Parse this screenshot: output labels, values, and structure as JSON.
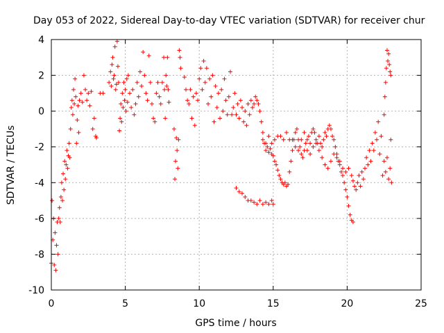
{
  "chart_data": {
    "type": "scatter",
    "title": "Day 053 of 2022, Sidereal Day-to-day VTEC variation (SDTVAR) for receiver chur",
    "xlabel": "GPS time / hours",
    "ylabel": "SDTVAR / TECUs",
    "xlim": [
      0,
      25
    ],
    "ylim": [
      -10,
      4
    ],
    "xticks": [
      0,
      5,
      10,
      15,
      20,
      25
    ],
    "yticks": [
      -10,
      -8,
      -6,
      -4,
      -2,
      0,
      2,
      4
    ],
    "grid": true,
    "marker": "+",
    "color": "#ff0000",
    "series": [
      {
        "name": "SDTVAR",
        "points": [
          [
            0.0,
            -8.5
          ],
          [
            0.05,
            -5.0
          ],
          [
            0.1,
            -7.2
          ],
          [
            0.15,
            -6.0
          ],
          [
            0.2,
            -8.6
          ],
          [
            0.25,
            -6.8
          ],
          [
            0.3,
            -8.9
          ],
          [
            0.35,
            -7.5
          ],
          [
            0.4,
            -6.2
          ],
          [
            0.45,
            -8.0
          ],
          [
            0.5,
            -6.0
          ],
          [
            0.55,
            -5.4
          ],
          [
            0.6,
            -6.2
          ],
          [
            0.65,
            -4.8
          ],
          [
            0.7,
            -4.0
          ],
          [
            0.75,
            -5.0
          ],
          [
            0.8,
            -3.5
          ],
          [
            0.85,
            -4.4
          ],
          [
            0.9,
            -2.8
          ],
          [
            0.95,
            -3.8
          ],
          [
            1.0,
            -3.0
          ],
          [
            1.05,
            -2.2
          ],
          [
            1.1,
            -3.2
          ],
          [
            1.15,
            -2.5
          ],
          [
            1.2,
            -1.8
          ],
          [
            1.25,
            -2.6
          ],
          [
            1.3,
            -1.0
          ],
          [
            1.35,
            0.2
          ],
          [
            1.4,
            0.6
          ],
          [
            1.45,
            -0.2
          ],
          [
            1.5,
            1.2
          ],
          [
            1.55,
            0.4
          ],
          [
            1.6,
            1.8
          ],
          [
            1.65,
            0.8
          ],
          [
            1.7,
            -1.8
          ],
          [
            1.75,
            -0.5
          ],
          [
            1.8,
            0.3
          ],
          [
            1.85,
            -1.2
          ],
          [
            1.9,
            0.6
          ],
          [
            2.0,
            1.0
          ],
          [
            2.1,
            0.5
          ],
          [
            2.2,
            2.0
          ],
          [
            2.3,
            1.2
          ],
          [
            2.4,
            0.6
          ],
          [
            2.5,
            1.0
          ],
          [
            2.6,
            0.3
          ],
          [
            2.7,
            1.1
          ],
          [
            2.8,
            -1.0
          ],
          [
            2.9,
            -0.4
          ],
          [
            3.0,
            -1.4
          ],
          [
            3.05,
            -1.5
          ],
          [
            3.3,
            1.0
          ],
          [
            3.5,
            1.0
          ],
          [
            3.9,
            1.6
          ],
          [
            4.0,
            2.2
          ],
          [
            4.05,
            1.4
          ],
          [
            4.1,
            2.6
          ],
          [
            4.15,
            3.0
          ],
          [
            4.2,
            1.8
          ],
          [
            4.25,
            2.0
          ],
          [
            4.3,
            3.6
          ],
          [
            4.35,
            1.2
          ],
          [
            4.4,
            1.5
          ],
          [
            4.45,
            3.9
          ],
          [
            4.5,
            2.5
          ],
          [
            4.55,
            1.6
          ],
          [
            4.6,
            -1.1
          ],
          [
            4.65,
            -0.4
          ],
          [
            4.7,
            0.4
          ],
          [
            4.75,
            -0.6
          ],
          [
            4.8,
            1.0
          ],
          [
            4.85,
            0.2
          ],
          [
            4.9,
            1.6
          ],
          [
            4.95,
            0.6
          ],
          [
            5.0,
            1.2
          ],
          [
            5.05,
            0.0
          ],
          [
            5.1,
            1.8
          ],
          [
            5.15,
            0.5
          ],
          [
            5.2,
            2.0
          ],
          [
            5.3,
            1.0
          ],
          [
            5.4,
            0.2
          ],
          [
            5.5,
            1.2
          ],
          [
            5.6,
            -0.2
          ],
          [
            5.7,
            0.4
          ],
          [
            5.8,
            1.6
          ],
          [
            5.9,
            0.8
          ],
          [
            6.0,
            2.2
          ],
          [
            6.1,
            1.4
          ],
          [
            6.2,
            3.3
          ],
          [
            6.3,
            2.0
          ],
          [
            6.4,
            1.0
          ],
          [
            6.5,
            0.6
          ],
          [
            6.6,
            3.1
          ],
          [
            6.7,
            1.6
          ],
          [
            6.8,
            0.4
          ],
          [
            6.9,
            -0.4
          ],
          [
            7.0,
            -0.6
          ],
          [
            7.1,
            1.0
          ],
          [
            7.2,
            1.6
          ],
          [
            7.3,
            0.8
          ],
          [
            7.4,
            0.4
          ],
          [
            7.5,
            1.6
          ],
          [
            7.6,
            3.0
          ],
          [
            7.65,
            1.2
          ],
          [
            7.7,
            -0.4
          ],
          [
            7.75,
            2.0
          ],
          [
            7.8,
            1.4
          ],
          [
            7.85,
            3.0
          ],
          [
            7.9,
            1.2
          ],
          [
            7.95,
            0.5
          ],
          [
            8.3,
            -1.0
          ],
          [
            8.35,
            -3.8
          ],
          [
            8.4,
            -2.8
          ],
          [
            8.45,
            -1.5
          ],
          [
            8.5,
            -2.2
          ],
          [
            8.55,
            -3.2
          ],
          [
            8.6,
            -1.6
          ],
          [
            8.65,
            3.4
          ],
          [
            8.7,
            3.0
          ],
          [
            8.75,
            2.4
          ],
          [
            9.0,
            1.9
          ],
          [
            9.1,
            1.2
          ],
          [
            9.2,
            0.6
          ],
          [
            9.3,
            0.4
          ],
          [
            9.4,
            1.2
          ],
          [
            9.5,
            -0.4
          ],
          [
            9.6,
            0.8
          ],
          [
            9.7,
            -0.8
          ],
          [
            9.8,
            1.0
          ],
          [
            9.9,
            0.6
          ],
          [
            10.0,
            1.8
          ],
          [
            10.1,
            2.4
          ],
          [
            10.2,
            1.2
          ],
          [
            10.3,
            2.8
          ],
          [
            10.4,
            1.6
          ],
          [
            10.5,
            2.4
          ],
          [
            10.6,
            0.4
          ],
          [
            10.7,
            1.8
          ],
          [
            10.8,
            0.8
          ],
          [
            10.9,
            2.0
          ],
          [
            11.0,
            -0.6
          ],
          [
            11.1,
            1.4
          ],
          [
            11.2,
            0.2
          ],
          [
            11.3,
            1.0
          ],
          [
            11.4,
            -0.4
          ],
          [
            11.5,
            1.2
          ],
          [
            11.6,
            0.0
          ],
          [
            11.7,
            1.8
          ],
          [
            11.8,
            0.6
          ],
          [
            11.9,
            -0.2
          ],
          [
            12.0,
            0.8
          ],
          [
            12.1,
            2.2
          ],
          [
            12.2,
            -0.2
          ],
          [
            12.3,
            0.2
          ],
          [
            12.4,
            1.0
          ],
          [
            12.5,
            -0.2
          ],
          [
            12.6,
            0.4
          ],
          [
            12.7,
            -0.4
          ],
          [
            12.8,
            0.6
          ],
          [
            12.9,
            0.2
          ],
          [
            13.0,
            -0.6
          ],
          [
            13.1,
            0.0
          ],
          [
            13.2,
            -0.8
          ],
          [
            13.3,
            0.4
          ],
          [
            13.4,
            -0.2
          ],
          [
            13.5,
            0.6
          ],
          [
            13.6,
            0.2
          ],
          [
            13.7,
            0.4
          ],
          [
            13.8,
            0.8
          ],
          [
            13.9,
            0.6
          ],
          [
            14.0,
            0.4
          ],
          [
            14.1,
            0.0
          ],
          [
            14.2,
            -0.6
          ],
          [
            14.3,
            -1.2
          ],
          [
            14.4,
            -1.8
          ],
          [
            14.5,
            -2.2
          ],
          [
            14.6,
            -2.0
          ],
          [
            14.7,
            -2.3
          ],
          [
            14.8,
            -2.1
          ],
          [
            14.9,
            -2.4
          ],
          [
            15.0,
            -2.5
          ],
          [
            15.1,
            -2.8
          ],
          [
            15.2,
            -3.0
          ],
          [
            15.3,
            -3.3
          ],
          [
            15.4,
            -3.6
          ],
          [
            15.5,
            -3.8
          ],
          [
            15.6,
            -4.0
          ],
          [
            15.7,
            -4.1
          ],
          [
            15.8,
            -4.0
          ],
          [
            15.9,
            -4.2
          ],
          [
            16.0,
            -4.1
          ],
          [
            16.1,
            -3.4
          ],
          [
            16.2,
            -2.8
          ],
          [
            16.3,
            -2.2
          ],
          [
            16.4,
            -1.6
          ],
          [
            16.5,
            -1.2
          ],
          [
            16.6,
            -1.0
          ],
          [
            16.7,
            -1.6
          ],
          [
            16.8,
            -2.0
          ],
          [
            16.9,
            -2.4
          ],
          [
            17.0,
            -2.6
          ],
          [
            17.1,
            -2.2
          ],
          [
            17.2,
            -1.8
          ],
          [
            17.3,
            -1.6
          ],
          [
            17.4,
            -1.4
          ],
          [
            17.5,
            -1.8
          ],
          [
            17.6,
            -1.2
          ],
          [
            17.7,
            -1.0
          ],
          [
            17.8,
            -1.2
          ],
          [
            17.9,
            -1.6
          ],
          [
            18.0,
            -1.8
          ],
          [
            18.1,
            -1.4
          ],
          [
            18.2,
            -1.8
          ],
          [
            18.3,
            -2.0
          ],
          [
            18.4,
            -1.6
          ],
          [
            18.5,
            -1.2
          ],
          [
            18.6,
            -1.4
          ],
          [
            18.7,
            -1.0
          ],
          [
            18.8,
            -0.8
          ],
          [
            18.9,
            -1.0
          ],
          [
            19.0,
            -1.4
          ],
          [
            19.1,
            -1.6
          ],
          [
            19.2,
            -2.0
          ],
          [
            19.3,
            -2.4
          ],
          [
            19.4,
            -2.8
          ],
          [
            19.5,
            -3.0
          ],
          [
            19.6,
            -3.4
          ],
          [
            19.7,
            -3.6
          ],
          [
            19.8,
            -4.0
          ],
          [
            19.9,
            -4.4
          ],
          [
            20.0,
            -4.8
          ],
          [
            20.1,
            -5.3
          ],
          [
            20.2,
            -5.8
          ],
          [
            20.3,
            -6.1
          ],
          [
            20.4,
            -6.2
          ],
          [
            14.3,
            -1.6
          ],
          [
            14.5,
            -1.8
          ],
          [
            14.7,
            -1.4
          ],
          [
            14.9,
            -1.8
          ],
          [
            15.1,
            -1.6
          ],
          [
            15.3,
            -1.4
          ],
          [
            15.5,
            -1.4
          ],
          [
            15.7,
            -1.6
          ],
          [
            15.9,
            -1.2
          ],
          [
            16.1,
            -1.6
          ],
          [
            16.3,
            -1.6
          ],
          [
            16.5,
            -2.0
          ],
          [
            16.7,
            -2.2
          ],
          [
            16.9,
            -1.6
          ],
          [
            17.1,
            -1.2
          ],
          [
            17.3,
            -2.2
          ],
          [
            17.5,
            -2.4
          ],
          [
            17.7,
            -2.0
          ],
          [
            17.9,
            -1.8
          ],
          [
            18.1,
            -2.2
          ],
          [
            18.3,
            -2.6
          ],
          [
            18.5,
            -3.0
          ],
          [
            18.7,
            -3.2
          ],
          [
            18.9,
            -2.8
          ],
          [
            19.1,
            -2.4
          ],
          [
            19.3,
            -2.6
          ],
          [
            19.5,
            -2.8
          ],
          [
            19.7,
            -3.2
          ],
          [
            19.9,
            -3.4
          ],
          [
            20.1,
            -3.2
          ],
          [
            20.3,
            -3.6
          ],
          [
            20.4,
            -3.9
          ],
          [
            20.5,
            -4.2
          ],
          [
            20.6,
            -4.4
          ],
          [
            20.7,
            -4.0
          ],
          [
            20.8,
            -3.6
          ],
          [
            20.9,
            -4.2
          ],
          [
            21.0,
            -3.4
          ],
          [
            21.1,
            -3.8
          ],
          [
            21.2,
            -3.2
          ],
          [
            21.3,
            -2.6
          ],
          [
            21.4,
            -3.0
          ],
          [
            21.5,
            -2.2
          ],
          [
            21.6,
            -2.8
          ],
          [
            21.7,
            -1.8
          ],
          [
            21.8,
            -2.2
          ],
          [
            21.9,
            -1.2
          ],
          [
            22.0,
            -1.6
          ],
          [
            22.1,
            -0.6
          ],
          [
            22.2,
            -2.4
          ],
          [
            22.3,
            -1.4
          ],
          [
            22.4,
            -3.6
          ],
          [
            22.5,
            -2.8
          ],
          [
            22.6,
            -3.4
          ],
          [
            22.7,
            -2.6
          ],
          [
            22.8,
            -3.8
          ],
          [
            22.9,
            -3.2
          ],
          [
            23.0,
            -4.0
          ],
          [
            22.95,
            -1.6
          ],
          [
            22.5,
            -0.2
          ],
          [
            22.55,
            0.8
          ],
          [
            22.6,
            1.6
          ],
          [
            22.65,
            2.4
          ],
          [
            22.7,
            3.4
          ],
          [
            22.75,
            2.8
          ],
          [
            22.8,
            3.2
          ],
          [
            22.85,
            2.6
          ],
          [
            22.9,
            2.2
          ],
          [
            22.95,
            2.0
          ],
          [
            12.5,
            -4.3
          ],
          [
            12.7,
            -4.5
          ],
          [
            12.9,
            -4.6
          ],
          [
            13.1,
            -4.8
          ],
          [
            13.3,
            -5.0
          ],
          [
            13.5,
            -5.0
          ],
          [
            13.7,
            -5.1
          ],
          [
            13.9,
            -5.2
          ],
          [
            14.1,
            -5.0
          ],
          [
            14.3,
            -5.2
          ],
          [
            14.5,
            -5.1
          ],
          [
            14.7,
            -5.2
          ],
          [
            14.9,
            -5.0
          ],
          [
            15.0,
            -5.2
          ]
        ]
      }
    ]
  }
}
